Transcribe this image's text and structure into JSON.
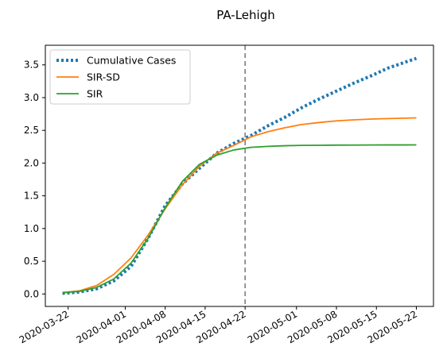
{
  "chart_data": {
    "type": "line",
    "title": "PA-Lehigh",
    "xlabel": "",
    "ylabel": "",
    "x_ticks": [
      "2020-03-22",
      "2020-04-01",
      "2020-04-08",
      "2020-04-15",
      "2020-04-22",
      "2020-05-01",
      "2020-05-08",
      "2020-05-15",
      "2020-05-22"
    ],
    "y_ticks": [
      "0.0",
      "0.5",
      "1.0",
      "1.5",
      "2.0",
      "2.5",
      "3.0",
      "3.5"
    ],
    "xlim": [
      "2020-03-18",
      "2020-05-25"
    ],
    "ylim": [
      -0.19,
      3.8
    ],
    "grid": false,
    "legend_position": "top-left",
    "vline": {
      "x": "2020-04-22",
      "style": "dashed",
      "color": "#808080"
    },
    "series": [
      {
        "name": "Cumulative Cases",
        "style": "dotted",
        "color": "#1f77b4",
        "x": [
          "2020-03-21",
          "2020-03-24",
          "2020-03-27",
          "2020-03-30",
          "2020-04-02",
          "2020-04-05",
          "2020-04-08",
          "2020-04-11",
          "2020-04-14",
          "2020-04-17",
          "2020-04-20",
          "2020-04-23",
          "2020-04-26",
          "2020-04-29",
          "2020-05-02",
          "2020-05-05",
          "2020-05-08",
          "2020-05-11",
          "2020-05-14",
          "2020-05-17",
          "2020-05-20",
          "2020-05-22"
        ],
        "y": [
          0.01,
          0.03,
          0.08,
          0.2,
          0.42,
          0.85,
          1.35,
          1.68,
          1.92,
          2.15,
          2.3,
          2.42,
          2.57,
          2.7,
          2.85,
          2.98,
          3.1,
          3.22,
          3.33,
          3.45,
          3.54,
          3.6
        ]
      },
      {
        "name": "SIR-SD",
        "style": "solid",
        "color": "#ff7f0e",
        "x": [
          "2020-03-21",
          "2020-03-24",
          "2020-03-27",
          "2020-03-30",
          "2020-04-02",
          "2020-04-05",
          "2020-04-08",
          "2020-04-11",
          "2020-04-14",
          "2020-04-17",
          "2020-04-20",
          "2020-04-23",
          "2020-04-26",
          "2020-04-29",
          "2020-05-02",
          "2020-05-05",
          "2020-05-08",
          "2020-05-11",
          "2020-05-14",
          "2020-05-17",
          "2020-05-20",
          "2020-05-22"
        ],
        "y": [
          0.02,
          0.05,
          0.13,
          0.3,
          0.55,
          0.9,
          1.3,
          1.67,
          1.95,
          2.15,
          2.27,
          2.4,
          2.48,
          2.54,
          2.59,
          2.62,
          2.645,
          2.66,
          2.672,
          2.68,
          2.686,
          2.69
        ]
      },
      {
        "name": "SIR",
        "style": "solid",
        "color": "#2ca02c",
        "x": [
          "2020-03-21",
          "2020-03-24",
          "2020-03-27",
          "2020-03-30",
          "2020-04-02",
          "2020-04-05",
          "2020-04-08",
          "2020-04-11",
          "2020-04-14",
          "2020-04-17",
          "2020-04-20",
          "2020-04-23",
          "2020-04-26",
          "2020-04-29",
          "2020-05-02",
          "2020-05-05",
          "2020-05-08",
          "2020-05-11",
          "2020-05-14",
          "2020-05-17",
          "2020-05-20",
          "2020-05-22"
        ],
        "y": [
          0.02,
          0.04,
          0.1,
          0.23,
          0.47,
          0.85,
          1.32,
          1.72,
          1.98,
          2.12,
          2.2,
          2.24,
          2.255,
          2.265,
          2.27,
          2.272,
          2.274,
          2.275,
          2.276,
          2.277,
          2.277,
          2.278
        ]
      }
    ]
  }
}
